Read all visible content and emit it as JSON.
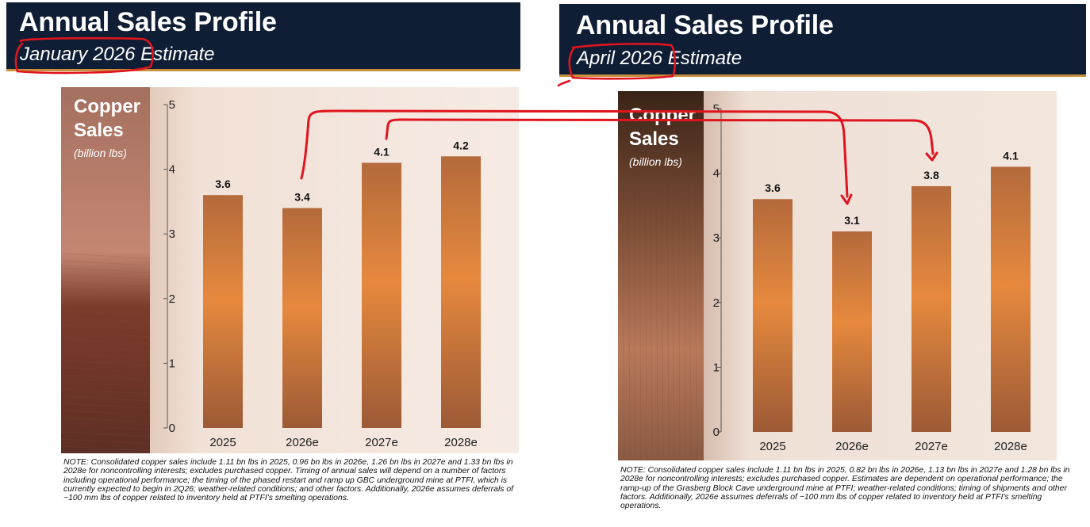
{
  "panels": [
    {
      "title": "Annual Sales Profile",
      "subtitle_date": "January 2026",
      "subtitle_rest": "Estimate",
      "note": "NOTE: Consolidated copper sales include 1.11 bn lbs in 2025, 0.96 bn lbs in 2026e, 1.26 bn lbs in 2027e and 1.33 bn lbs in 2028e for noncontrolling interests; excludes purchased copper. Timing of annual sales will depend on a number of factors including operational performance; the timing of the phased restart and ramp up GBC underground mine at PTFI, which is currently expected to begin in 2Q26;  weather-related conditions; and other factors. Additionally, 2026e assumes deferrals of ~100 mm lbs of copper related to inventory held at PTFI's smelting operations."
    },
    {
      "title": "Annual Sales Profile",
      "subtitle_date": "April 2026",
      "subtitle_rest": "Estimate",
      "note": "NOTE: Consolidated copper sales include 1.11 bn lbs in 2025, 0.82 bn lbs in 2026e, 1.13 bn lbs in 2027e and 1.28 bn lbs in 2028e for noncontrolling interests; excludes purchased copper. Estimates are dependent on operational performance; the ramp-up of the Grasberg Block Cave underground mine at PTFI; weather-related conditions; timing of shipments and other factors. Additionally, 2026e assumes deferrals of ~100 mm lbs of copper related to inventory held at PTFI's smelting operations."
    }
  ],
  "chart_data": [
    {
      "type": "bar",
      "title": "Copper Sales",
      "unit": "(billion lbs)",
      "categories": [
        "2025",
        "2026e",
        "2027e",
        "2028e"
      ],
      "values": [
        3.6,
        3.4,
        4.1,
        4.2
      ],
      "data_labels": [
        "3.6",
        "3.4",
        "4.1",
        "4.2"
      ],
      "ylim": [
        0,
        5
      ],
      "yticks": [
        "0",
        "1",
        "2",
        "3",
        "4",
        "5"
      ],
      "grid": false
    },
    {
      "type": "bar",
      "title": "Copper Sales",
      "unit": "(billion lbs)",
      "categories": [
        "2025",
        "2026e",
        "2027e",
        "2028e"
      ],
      "values": [
        3.6,
        3.1,
        3.8,
        4.1
      ],
      "data_labels": [
        "3.6",
        "3.1",
        "3.8",
        "4.1"
      ],
      "ylim": [
        0,
        5
      ],
      "yticks": [
        "0",
        "1",
        "2",
        "3",
        "4",
        "5"
      ],
      "grid": false
    }
  ],
  "colors": {
    "header_bg": "#0f1e35",
    "header_rule": "#c8903d",
    "annotation": "#e0141e",
    "bar_top": "#b46a3c",
    "bar_mid": "#e6893e",
    "bar_bottom": "#9c5a36"
  }
}
